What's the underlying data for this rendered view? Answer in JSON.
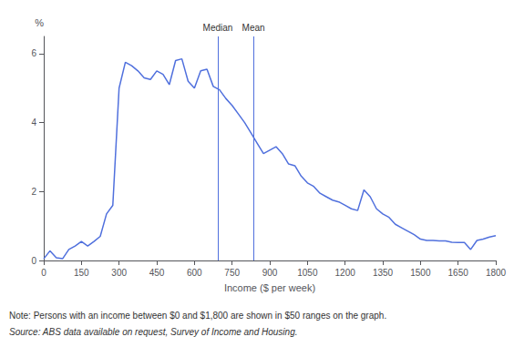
{
  "chart_data": {
    "type": "line",
    "xlabel": "Income ($ per week)",
    "ylabel": "%",
    "annotations": [
      {
        "text": "Median",
        "x": 693
      },
      {
        "text": "Mean",
        "x": 835
      }
    ],
    "note": "Note: Persons with an income between $0 and $1,800 are shown in $50 ranges on the graph.",
    "source": "Source: ABS data available on request, Survey of Income and Housing.",
    "x": [
      0,
      25,
      50,
      75,
      100,
      125,
      150,
      175,
      200,
      225,
      250,
      275,
      300,
      325,
      350,
      375,
      400,
      425,
      450,
      475,
      500,
      525,
      550,
      575,
      600,
      625,
      650,
      675,
      700,
      725,
      750,
      775,
      800,
      825,
      850,
      875,
      900,
      925,
      950,
      975,
      1000,
      1025,
      1050,
      1075,
      1100,
      1125,
      1150,
      1175,
      1200,
      1225,
      1250,
      1275,
      1300,
      1325,
      1350,
      1375,
      1400,
      1425,
      1450,
      1475,
      1500,
      1525,
      1550,
      1575,
      1600,
      1625,
      1650,
      1675,
      1700,
      1725,
      1750,
      1775,
      1800
    ],
    "values": [
      0.05,
      0.28,
      0.08,
      0.05,
      0.32,
      0.42,
      0.55,
      0.42,
      0.55,
      0.7,
      1.35,
      1.6,
      5.0,
      5.75,
      5.65,
      5.5,
      5.3,
      5.25,
      5.5,
      5.4,
      5.1,
      5.8,
      5.85,
      5.2,
      5.0,
      5.5,
      5.55,
      5.05,
      4.95,
      4.7,
      4.5,
      4.25,
      4.0,
      3.7,
      3.4,
      3.1,
      3.2,
      3.3,
      3.1,
      2.8,
      2.75,
      2.45,
      2.25,
      2.15,
      1.95,
      1.85,
      1.75,
      1.7,
      1.6,
      1.5,
      1.45,
      2.05,
      1.85,
      1.5,
      1.35,
      1.25,
      1.05,
      0.95,
      0.85,
      0.75,
      0.62,
      0.58,
      0.58,
      0.57,
      0.57,
      0.53,
      0.52,
      0.52,
      0.32,
      0.58,
      0.62,
      0.68,
      0.72
    ],
    "xlim": [
      0,
      1800
    ],
    "ylim": [
      0,
      6.5
    ],
    "xticks": [
      0,
      150,
      300,
      450,
      600,
      750,
      900,
      1050,
      1200,
      1350,
      1500,
      1650,
      1800
    ],
    "yticks": [
      0,
      2,
      4,
      6
    ],
    "grid": false
  }
}
